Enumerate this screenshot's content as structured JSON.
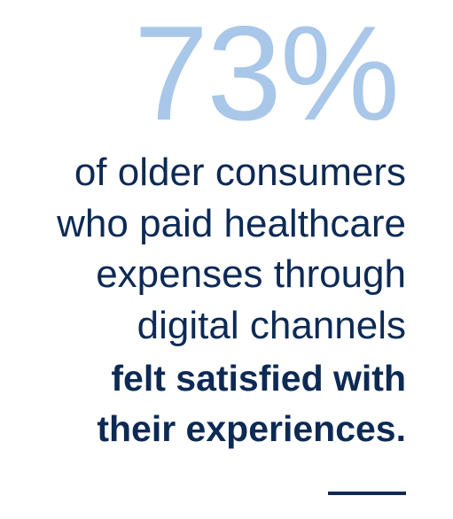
{
  "stat": {
    "value": "73%",
    "lines": [
      "of older consumers",
      "who paid healthcare",
      "expenses through",
      "digital channels"
    ],
    "emphasis_lines": [
      "felt satisfied with",
      "their experiences."
    ]
  }
}
